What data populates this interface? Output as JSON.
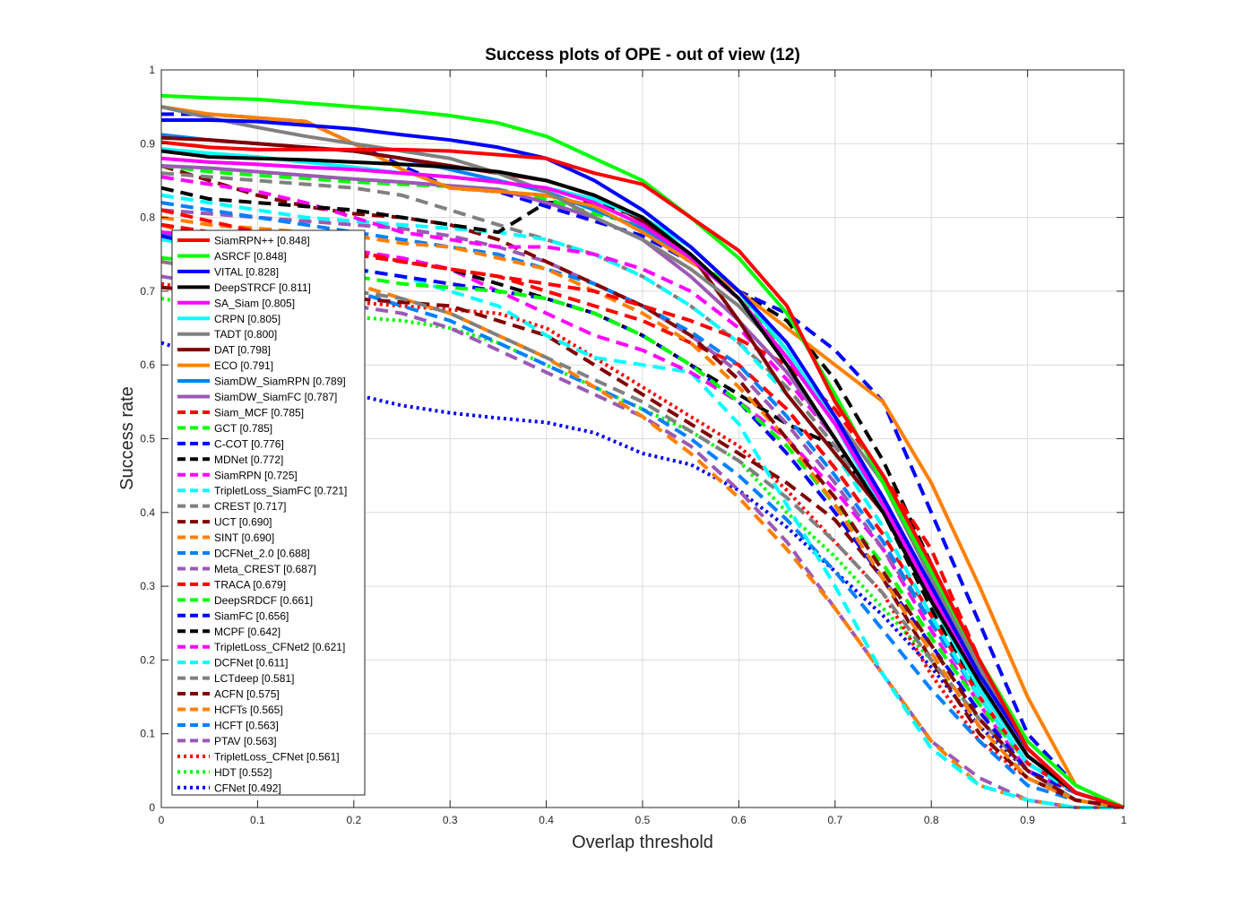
{
  "chart_data": {
    "type": "line",
    "title": "Success plots of OPE - out of view (12)",
    "xlabel": "Overlap threshold",
    "ylabel": "Success rate",
    "xlim": [
      0,
      1
    ],
    "ylim": [
      0,
      1
    ],
    "xticks": [
      "0",
      "0.1",
      "0.2",
      "0.3",
      "0.4",
      "0.5",
      "0.6",
      "0.7",
      "0.8",
      "0.9",
      "1"
    ],
    "yticks": [
      "0",
      "0.1",
      "0.2",
      "0.3",
      "0.4",
      "0.5",
      "0.6",
      "0.7",
      "0.8",
      "0.9",
      "1"
    ],
    "grid": true,
    "legend_position": "left",
    "x": [
      0,
      0.05,
      0.1,
      0.15,
      0.2,
      0.25,
      0.3,
      0.35,
      0.4,
      0.45,
      0.5,
      0.55,
      0.6,
      0.65,
      0.7,
      0.75,
      0.8,
      0.85,
      0.9,
      0.95,
      1
    ],
    "series": [
      {
        "name": "SiamRPN++",
        "legend": "SiamRPN++ [0.848]",
        "color": "#ff0000",
        "style": "solid",
        "values": [
          0.902,
          0.895,
          0.892,
          0.892,
          0.892,
          0.892,
          0.89,
          0.885,
          0.88,
          0.86,
          0.845,
          0.8,
          0.755,
          0.68,
          0.55,
          0.45,
          0.33,
          0.2,
          0.08,
          0.02,
          0.0
        ]
      },
      {
        "name": "ASRCF",
        "legend": "ASRCF [0.848]",
        "color": "#00ff00",
        "style": "solid",
        "values": [
          0.965,
          0.962,
          0.96,
          0.955,
          0.95,
          0.945,
          0.938,
          0.928,
          0.91,
          0.88,
          0.85,
          0.8,
          0.745,
          0.67,
          0.56,
          0.44,
          0.32,
          0.2,
          0.09,
          0.03,
          0.0
        ]
      },
      {
        "name": "VITAL",
        "legend": "VITAL [0.828]",
        "color": "#0000ff",
        "style": "solid",
        "values": [
          0.932,
          0.932,
          0.93,
          0.925,
          0.92,
          0.912,
          0.905,
          0.895,
          0.88,
          0.85,
          0.81,
          0.76,
          0.7,
          0.63,
          0.53,
          0.42,
          0.3,
          0.18,
          0.08,
          0.02,
          0.0
        ]
      },
      {
        "name": "DeepSTRCF",
        "legend": "DeepSTRCF [0.811]",
        "color": "#000000",
        "style": "solid",
        "values": [
          0.89,
          0.882,
          0.88,
          0.878,
          0.875,
          0.872,
          0.868,
          0.862,
          0.85,
          0.83,
          0.8,
          0.75,
          0.69,
          0.6,
          0.5,
          0.4,
          0.28,
          0.17,
          0.07,
          0.02,
          0.0
        ]
      },
      {
        "name": "SA_Siam",
        "legend": "SA_Siam [0.805]",
        "color": "#ff00ff",
        "style": "solid",
        "values": [
          0.88,
          0.875,
          0.872,
          0.868,
          0.865,
          0.86,
          0.855,
          0.848,
          0.84,
          0.82,
          0.79,
          0.745,
          0.69,
          0.61,
          0.52,
          0.41,
          0.29,
          0.17,
          0.07,
          0.02,
          0.0
        ]
      },
      {
        "name": "CRPN",
        "legend": "CRPN [0.805]",
        "color": "#00ffff",
        "style": "solid",
        "values": [
          0.893,
          0.887,
          0.882,
          0.875,
          0.868,
          0.86,
          0.855,
          0.848,
          0.84,
          0.825,
          0.8,
          0.76,
          0.7,
          0.62,
          0.52,
          0.4,
          0.28,
          0.16,
          0.07,
          0.02,
          0.0
        ]
      },
      {
        "name": "TADT",
        "legend": "TADT [0.800]",
        "color": "#808080",
        "style": "solid",
        "values": [
          0.95,
          0.935,
          0.922,
          0.91,
          0.9,
          0.89,
          0.88,
          0.86,
          0.835,
          0.8,
          0.77,
          0.73,
          0.68,
          0.61,
          0.53,
          0.44,
          0.31,
          0.19,
          0.08,
          0.02,
          0.0
        ]
      },
      {
        "name": "DAT",
        "legend": "DAT [0.798]",
        "color": "#800000",
        "style": "solid",
        "values": [
          0.908,
          0.905,
          0.9,
          0.895,
          0.89,
          0.88,
          0.87,
          0.86,
          0.85,
          0.83,
          0.795,
          0.75,
          0.66,
          0.56,
          0.48,
          0.4,
          0.28,
          0.16,
          0.07,
          0.02,
          0.0
        ]
      },
      {
        "name": "ECO",
        "legend": "ECO [0.791]",
        "color": "#ff8000",
        "style": "solid",
        "values": [
          0.95,
          0.94,
          0.935,
          0.93,
          0.9,
          0.865,
          0.84,
          0.835,
          0.83,
          0.815,
          0.78,
          0.74,
          0.7,
          0.65,
          0.6,
          0.55,
          0.44,
          0.3,
          0.15,
          0.03,
          0.0
        ]
      },
      {
        "name": "SiamDW_SiamRPN",
        "legend": "SiamDW_SiamRPN [0.789]",
        "color": "#0080ff",
        "style": "solid",
        "values": [
          0.912,
          0.905,
          0.9,
          0.895,
          0.89,
          0.88,
          0.865,
          0.85,
          0.835,
          0.81,
          0.785,
          0.745,
          0.69,
          0.61,
          0.52,
          0.42,
          0.3,
          0.18,
          0.08,
          0.02,
          0.0
        ]
      },
      {
        "name": "SiamDW_SiamFC",
        "legend": "SiamDW_SiamFC [0.787]",
        "color": "#9b59b6",
        "style": "solid",
        "values": [
          0.87,
          0.867,
          0.862,
          0.857,
          0.852,
          0.848,
          0.843,
          0.838,
          0.82,
          0.8,
          0.77,
          0.72,
          0.66,
          0.59,
          0.5,
          0.4,
          0.29,
          0.17,
          0.07,
          0.02,
          0.0
        ]
      },
      {
        "name": "Siam_MCF",
        "legend": "Siam_MCF [0.785]",
        "color": "#ff0000",
        "style": "dash",
        "values": [
          0.81,
          0.795,
          0.78,
          0.765,
          0.755,
          0.74,
          0.73,
          0.72,
          0.71,
          0.7,
          0.68,
          0.66,
          0.635,
          0.6,
          0.54,
          0.45,
          0.35,
          0.2,
          0.08,
          0.02,
          0.0
        ]
      },
      {
        "name": "GCT",
        "legend": "GCT [0.785]",
        "color": "#00ff00",
        "style": "dash",
        "values": [
          0.87,
          0.862,
          0.857,
          0.853,
          0.848,
          0.845,
          0.842,
          0.838,
          0.825,
          0.805,
          0.79,
          0.745,
          0.7,
          0.61,
          0.52,
          0.41,
          0.29,
          0.17,
          0.07,
          0.02,
          0.0
        ]
      },
      {
        "name": "C-COT",
        "legend": "C-COT [0.776]",
        "color": "#0000ff",
        "style": "dash",
        "values": [
          0.94,
          0.94,
          0.935,
          0.93,
          0.9,
          0.87,
          0.84,
          0.835,
          0.815,
          0.795,
          0.775,
          0.74,
          0.7,
          0.67,
          0.62,
          0.55,
          0.4,
          0.25,
          0.1,
          0.03,
          0.0
        ]
      },
      {
        "name": "MDNet",
        "legend": "MDNet [0.772]",
        "color": "#000000",
        "style": "dash",
        "values": [
          0.84,
          0.825,
          0.82,
          0.815,
          0.81,
          0.8,
          0.79,
          0.78,
          0.82,
          0.82,
          0.8,
          0.74,
          0.7,
          0.66,
          0.58,
          0.47,
          0.33,
          0.2,
          0.08,
          0.02,
          0.0
        ]
      },
      {
        "name": "SiamRPN",
        "legend": "SiamRPN [0.725]",
        "color": "#ff00ff",
        "style": "dash",
        "values": [
          0.855,
          0.845,
          0.835,
          0.82,
          0.8,
          0.78,
          0.77,
          0.76,
          0.76,
          0.75,
          0.73,
          0.7,
          0.65,
          0.58,
          0.5,
          0.4,
          0.28,
          0.17,
          0.07,
          0.02,
          0.0
        ]
      },
      {
        "name": "TripletLoss_SiamFC",
        "legend": "TripletLoss_SiamFC [0.721]",
        "color": "#00ffff",
        "style": "dash",
        "values": [
          0.83,
          0.82,
          0.81,
          0.8,
          0.795,
          0.79,
          0.785,
          0.78,
          0.77,
          0.75,
          0.72,
          0.68,
          0.63,
          0.56,
          0.48,
          0.38,
          0.26,
          0.15,
          0.06,
          0.02,
          0.0
        ]
      },
      {
        "name": "CREST",
        "legend": "CREST [0.717]",
        "color": "#808080",
        "style": "dash",
        "values": [
          0.86,
          0.855,
          0.85,
          0.845,
          0.84,
          0.83,
          0.81,
          0.79,
          0.77,
          0.75,
          0.72,
          0.68,
          0.63,
          0.57,
          0.49,
          0.4,
          0.28,
          0.17,
          0.07,
          0.02,
          0.0
        ]
      },
      {
        "name": "UCT",
        "legend": "UCT [0.690]",
        "color": "#800000",
        "style": "dash",
        "values": [
          0.87,
          0.85,
          0.83,
          0.815,
          0.805,
          0.8,
          0.79,
          0.77,
          0.74,
          0.71,
          0.68,
          0.64,
          0.58,
          0.5,
          0.42,
          0.32,
          0.22,
          0.12,
          0.05,
          0.01,
          0.0
        ]
      },
      {
        "name": "SINT",
        "legend": "SINT [0.690]",
        "color": "#ff8000",
        "style": "dash",
        "values": [
          0.8,
          0.79,
          0.785,
          0.78,
          0.775,
          0.765,
          0.76,
          0.745,
          0.73,
          0.7,
          0.67,
          0.63,
          0.57,
          0.5,
          0.41,
          0.31,
          0.21,
          0.11,
          0.04,
          0.01,
          0.0
        ]
      },
      {
        "name": "DCFNet_2.0",
        "legend": "DCFNet_2.0 [0.688]",
        "color": "#0080ff",
        "style": "dash",
        "values": [
          0.82,
          0.81,
          0.8,
          0.79,
          0.78,
          0.77,
          0.76,
          0.75,
          0.73,
          0.71,
          0.68,
          0.645,
          0.6,
          0.53,
          0.45,
          0.36,
          0.25,
          0.15,
          0.06,
          0.02,
          0.0
        ]
      },
      {
        "name": "Meta_CREST",
        "legend": "Meta_CREST [0.687]",
        "color": "#9b59b6",
        "style": "dash",
        "values": [
          0.81,
          0.805,
          0.8,
          0.795,
          0.79,
          0.785,
          0.775,
          0.76,
          0.74,
          0.71,
          0.68,
          0.64,
          0.59,
          0.52,
          0.44,
          0.35,
          0.25,
          0.15,
          0.06,
          0.02,
          0.0
        ]
      },
      {
        "name": "TRACA",
        "legend": "TRACA [0.679]",
        "color": "#ff0000",
        "style": "dash",
        "values": [
          0.79,
          0.78,
          0.77,
          0.76,
          0.75,
          0.74,
          0.73,
          0.72,
          0.7,
          0.68,
          0.66,
          0.63,
          0.6,
          0.54,
          0.46,
          0.37,
          0.26,
          0.15,
          0.06,
          0.02,
          0.0
        ]
      },
      {
        "name": "DeepSRDCF",
        "legend": "DeepSRDCF [0.661]",
        "color": "#00ff00",
        "style": "dash",
        "values": [
          0.745,
          0.74,
          0.735,
          0.73,
          0.72,
          0.71,
          0.705,
          0.7,
          0.69,
          0.67,
          0.64,
          0.6,
          0.55,
          0.49,
          0.41,
          0.33,
          0.23,
          0.14,
          0.06,
          0.02,
          0.0
        ]
      },
      {
        "name": "SiamFC",
        "legend": "SiamFC [0.656]",
        "color": "#0000ff",
        "style": "dash",
        "values": [
          0.775,
          0.76,
          0.75,
          0.74,
          0.73,
          0.72,
          0.71,
          0.7,
          0.69,
          0.67,
          0.64,
          0.6,
          0.55,
          0.48,
          0.4,
          0.31,
          0.22,
          0.13,
          0.05,
          0.02,
          0.0
        ]
      },
      {
        "name": "MCPF",
        "legend": "MCPF [0.642]",
        "color": "#000000",
        "style": "dash",
        "values": [
          0.79,
          0.78,
          0.77,
          0.76,
          0.75,
          0.74,
          0.73,
          0.71,
          0.69,
          0.67,
          0.64,
          0.6,
          0.56,
          0.52,
          0.49,
          0.4,
          0.27,
          0.15,
          0.06,
          0.02,
          0.0
        ]
      },
      {
        "name": "TripletLoss_CFNet2",
        "legend": "TripletLoss_CFNet2 [0.621]",
        "color": "#ff00ff",
        "style": "dash",
        "values": [
          0.78,
          0.775,
          0.77,
          0.765,
          0.755,
          0.745,
          0.73,
          0.7,
          0.67,
          0.64,
          0.62,
          0.59,
          0.55,
          0.5,
          0.43,
          0.35,
          0.24,
          0.14,
          0.05,
          0.02,
          0.0
        ]
      },
      {
        "name": "DCFNet",
        "legend": "DCFNet [0.611]",
        "color": "#00ffff",
        "style": "dash",
        "values": [
          0.77,
          0.76,
          0.75,
          0.74,
          0.73,
          0.72,
          0.7,
          0.68,
          0.64,
          0.61,
          0.6,
          0.59,
          0.52,
          0.41,
          0.3,
          0.18,
          0.08,
          0.03,
          0.01,
          0.0,
          0.0
        ]
      },
      {
        "name": "LCTdeep",
        "legend": "LCTdeep [0.581]",
        "color": "#808080",
        "style": "dash",
        "values": [
          0.74,
          0.73,
          0.72,
          0.71,
          0.7,
          0.69,
          0.67,
          0.64,
          0.61,
          0.58,
          0.55,
          0.51,
          0.47,
          0.42,
          0.36,
          0.29,
          0.2,
          0.12,
          0.05,
          0.01,
          0.0
        ]
      },
      {
        "name": "ACFN",
        "legend": "ACFN [0.575]",
        "color": "#800000",
        "style": "dash",
        "values": [
          0.705,
          0.7,
          0.7,
          0.695,
          0.69,
          0.685,
          0.68,
          0.66,
          0.64,
          0.6,
          0.56,
          0.52,
          0.48,
          0.44,
          0.39,
          0.31,
          0.2,
          0.1,
          0.04,
          0.01,
          0.0
        ]
      },
      {
        "name": "HCFTs",
        "legend": "HCFTs [0.565]",
        "color": "#ff8000",
        "style": "dash",
        "values": [
          0.79,
          0.77,
          0.75,
          0.73,
          0.71,
          0.69,
          0.67,
          0.64,
          0.61,
          0.57,
          0.53,
          0.48,
          0.42,
          0.35,
          0.27,
          0.18,
          0.09,
          0.03,
          0.01,
          0.0,
          0.0
        ]
      },
      {
        "name": "HCFT",
        "legend": "HCFT [0.563]",
        "color": "#0080ff",
        "style": "dash",
        "values": [
          0.78,
          0.76,
          0.74,
          0.72,
          0.7,
          0.68,
          0.66,
          0.63,
          0.6,
          0.57,
          0.54,
          0.5,
          0.45,
          0.39,
          0.32,
          0.24,
          0.16,
          0.09,
          0.03,
          0.01,
          0.0
        ]
      },
      {
        "name": "PTAV",
        "legend": "PTAV [0.563]",
        "color": "#9b59b6",
        "style": "dash",
        "values": [
          0.72,
          0.71,
          0.7,
          0.69,
          0.68,
          0.67,
          0.65,
          0.62,
          0.59,
          0.56,
          0.53,
          0.49,
          0.43,
          0.36,
          0.27,
          0.18,
          0.09,
          0.04,
          0.01,
          0.0,
          0.0
        ]
      },
      {
        "name": "TripletLoss_CFNet",
        "legend": "TripletLoss_CFNet [0.561]",
        "color": "#ff0000",
        "style": "dot",
        "values": [
          0.71,
          0.7,
          0.695,
          0.69,
          0.685,
          0.68,
          0.675,
          0.67,
          0.65,
          0.61,
          0.57,
          0.53,
          0.49,
          0.43,
          0.36,
          0.29,
          0.18,
          0.09,
          0.04,
          0.01,
          0.0
        ]
      },
      {
        "name": "HDT",
        "legend": "HDT [0.552]",
        "color": "#00ff00",
        "style": "dot",
        "values": [
          0.69,
          0.68,
          0.675,
          0.67,
          0.665,
          0.66,
          0.65,
          0.63,
          0.6,
          0.57,
          0.54,
          0.51,
          0.47,
          0.4,
          0.34,
          0.27,
          0.2,
          0.12,
          0.05,
          0.01,
          0.0
        ]
      },
      {
        "name": "CFNet",
        "legend": "CFNet [0.492]",
        "color": "#0000ff",
        "style": "dot",
        "values": [
          0.63,
          0.61,
          0.59,
          0.575,
          0.56,
          0.545,
          0.535,
          0.528,
          0.522,
          0.508,
          0.48,
          0.465,
          0.43,
          0.38,
          0.32,
          0.26,
          0.19,
          0.11,
          0.05,
          0.01,
          0.0
        ]
      }
    ]
  }
}
